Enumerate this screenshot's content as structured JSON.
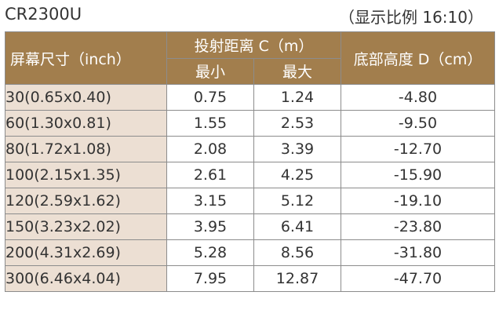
{
  "caption": {
    "model": "CR2300U",
    "ratio": "（显示比例 16:10）"
  },
  "table": {
    "headers": {
      "screen_size": "屏幕尺寸（inch）",
      "throw_distance": "投射距离 C（m）",
      "min": "最小",
      "max": "最大",
      "bottom_height": "底部高度 D（cm）"
    },
    "rows": [
      {
        "size": "30(0.65x0.40)",
        "min": "0.75",
        "max": "1.24",
        "height": "-4.80"
      },
      {
        "size": "60(1.30x0.81)",
        "min": "1.55",
        "max": "2.53",
        "height": "-9.50"
      },
      {
        "size": "80(1.72x1.08)",
        "min": "2.08",
        "max": "3.39",
        "height": "-12.70"
      },
      {
        "size": "100(2.15x1.35)",
        "min": "2.61",
        "max": "4.25",
        "height": "-15.90"
      },
      {
        "size": "120(2.59x1.62)",
        "min": "3.15",
        "max": "5.12",
        "height": "-19.10"
      },
      {
        "size": "150(3.23x2.02)",
        "min": "3.95",
        "max": "6.41",
        "height": "-23.80"
      },
      {
        "size": "200(4.31x2.69)",
        "min": "5.28",
        "max": "8.56",
        "height": "-31.80"
      },
      {
        "size": "300(6.46x4.04)",
        "min": "7.95",
        "max": "12.87",
        "height": "-47.70"
      }
    ]
  },
  "colors": {
    "header_bg": "#a27e4d",
    "size_col_bg": "#ecdfd3",
    "border": "#8c8c8c"
  }
}
